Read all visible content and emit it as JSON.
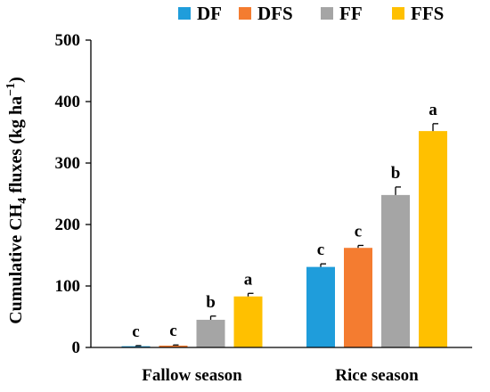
{
  "chart_data": {
    "type": "bar",
    "categories": [
      "Fallow season",
      "Rice season"
    ],
    "series": [
      {
        "name": "DF",
        "color": "#1f9ddb",
        "values": [
          2,
          131
        ],
        "errors": [
          1,
          5
        ],
        "labels": [
          "c",
          "c"
        ]
      },
      {
        "name": "DFS",
        "color": "#f47c30",
        "values": [
          3,
          162
        ],
        "errors": [
          1,
          4
        ],
        "labels": [
          "c",
          "c"
        ]
      },
      {
        "name": "FF",
        "color": "#a5a5a5",
        "values": [
          45,
          248
        ],
        "errors": [
          6,
          13
        ],
        "labels": [
          "b",
          "b"
        ]
      },
      {
        "name": "FFS",
        "color": "#ffc000",
        "values": [
          83,
          352
        ],
        "errors": [
          5,
          12
        ],
        "labels": [
          "a",
          "a"
        ]
      }
    ],
    "ylabel_parts": {
      "pre": "Cumulative CH",
      "sub": "4",
      "mid": " fluxes (kg ha",
      "sup": "−1",
      "post": ")"
    },
    "ylim": [
      0,
      500
    ],
    "yticks": [
      "0",
      "100",
      "200",
      "300",
      "400",
      "500"
    ],
    "grid": false,
    "legend_position": "top"
  }
}
